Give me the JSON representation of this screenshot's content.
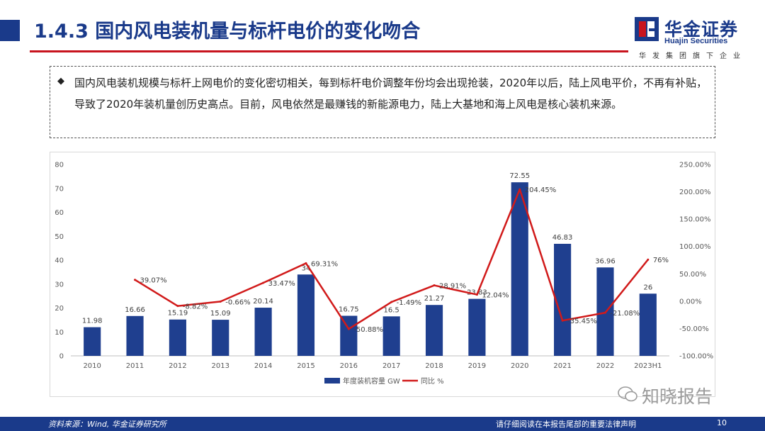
{
  "header": {
    "title": "1.4.3 国内风电装机量与标杆电价的变化吻合"
  },
  "logo": {
    "name_cn": "华金证券",
    "name_en": "Huajin Securities",
    "slogan": "华发集团旗下企业"
  },
  "summary": {
    "bullet": "◆",
    "text": "国内风电装机规模与标杆上网电价的变化密切相关，每到标杆电价调整年份均会出现抢装，2020年以后，陆上风电平价，不再有补贴，导致了2020年装机量创历史高点。目前，风电依然是最赚钱的新能源电力，陆上大基地和海上风电是核心装机来源。"
  },
  "chart_data": {
    "type": "bar",
    "categories": [
      "2010",
      "2011",
      "2012",
      "2013",
      "2014",
      "2015",
      "2016",
      "2017",
      "2018",
      "2019",
      "2020",
      "2021",
      "2022",
      "2023H1"
    ],
    "series": [
      {
        "name": "年度装机容量 GW",
        "type": "bar",
        "color": "#1f3f8f",
        "values": [
          11.98,
          16.66,
          15.19,
          15.09,
          20.14,
          34,
          16.75,
          16.5,
          21.27,
          23.83,
          72.55,
          46.83,
          36.96,
          26
        ],
        "labels": [
          "11.98",
          "16.66",
          "15.19",
          "15.09",
          "20.14",
          "34",
          "16.75",
          "16.5",
          "21.27",
          "23.83",
          "72.55",
          "46.83",
          "36.96",
          "26"
        ]
      },
      {
        "name": "同比 %",
        "type": "line",
        "color": "#d11a1a",
        "values": [
          null,
          39.07,
          -8.82,
          -0.66,
          33.47,
          69.31,
          -50.88,
          -1.49,
          28.91,
          12.04,
          204.45,
          -35.45,
          -21.08,
          76
        ],
        "labels": [
          "",
          "39.07%",
          "-8.82%",
          "-0.66%",
          "33.47%",
          "69.31%",
          "-50.88%",
          "-1.49%",
          "28.91%",
          "12.04%",
          "204.45%",
          "-35.45%",
          "-21.08%",
          "76%"
        ]
      }
    ],
    "y_left": {
      "min": 0,
      "max": 80,
      "ticks": [
        "0",
        "10",
        "20",
        "30",
        "40",
        "50",
        "60",
        "70",
        "80"
      ]
    },
    "y_right": {
      "min": -100,
      "max": 250,
      "ticks": [
        "-100.00%",
        "-50.00%",
        "0.00%",
        "50.00%",
        "100.00%",
        "150.00%",
        "200.00%",
        "250.00%"
      ]
    },
    "grid": false,
    "legend_position": "bottom"
  },
  "footer": {
    "source": "资料来源：Wind,  华金证券研究所",
    "disclaimer": "请仔细阅读在本报告尾部的重要法律声明",
    "page": "10"
  },
  "watermark": {
    "text": "知晓报告"
  }
}
